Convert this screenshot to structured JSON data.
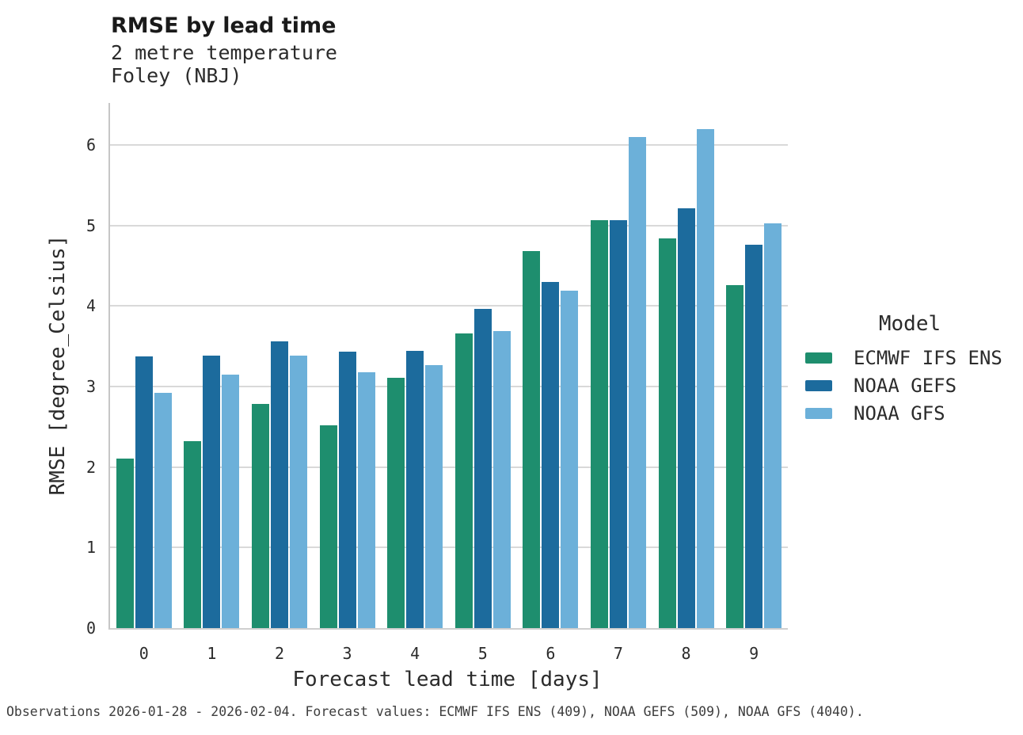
{
  "header": {
    "title": "RMSE by lead time",
    "subtitle_line1": "2 metre temperature",
    "subtitle_line2": "Foley (NBJ)"
  },
  "legend": {
    "title": "Model"
  },
  "footer": {
    "text": "Observations 2026-01-28 - 2026-02-04. Forecast values: ECMWF IFS ENS (409), NOAA GEFS (509), NOAA GFS (4040)."
  },
  "colors": {
    "ecmwf_green": "#1e8e6e",
    "gefs_dark_blue": "#1c6b9d",
    "gfs_light_blue": "#6cb0d9",
    "gridline": "#d9d9d9",
    "spine": "#c6c6c6",
    "text": "#2b2b2b"
  },
  "chart_data": {
    "type": "bar",
    "title": "RMSE by lead time",
    "subtitle": [
      "2 metre temperature",
      "Foley (NBJ)"
    ],
    "xlabel": "Forecast lead time [days]",
    "ylabel": "RMSE [degree_Celsius]",
    "categories": [
      "0",
      "1",
      "2",
      "3",
      "4",
      "5",
      "6",
      "7",
      "8",
      "9"
    ],
    "yticks": [
      0,
      1,
      2,
      3,
      4,
      5,
      6
    ],
    "ylim": [
      0,
      6.52
    ],
    "grid": "horizontal",
    "legend_position": "right",
    "legend_title": "Model",
    "series": [
      {
        "name": "ECMWF IFS ENS",
        "color": "#1e8e6e",
        "values": [
          2.1,
          2.32,
          2.78,
          2.52,
          3.11,
          3.66,
          4.68,
          5.06,
          4.84,
          4.26
        ]
      },
      {
        "name": "NOAA GEFS",
        "color": "#1c6b9d",
        "values": [
          3.37,
          3.38,
          3.56,
          3.43,
          3.44,
          3.96,
          4.3,
          5.06,
          5.21,
          4.76
        ]
      },
      {
        "name": "NOAA GFS",
        "color": "#6cb0d9",
        "values": [
          2.92,
          3.15,
          3.38,
          3.18,
          3.26,
          3.69,
          4.19,
          6.1,
          6.2,
          5.03
        ]
      }
    ]
  }
}
